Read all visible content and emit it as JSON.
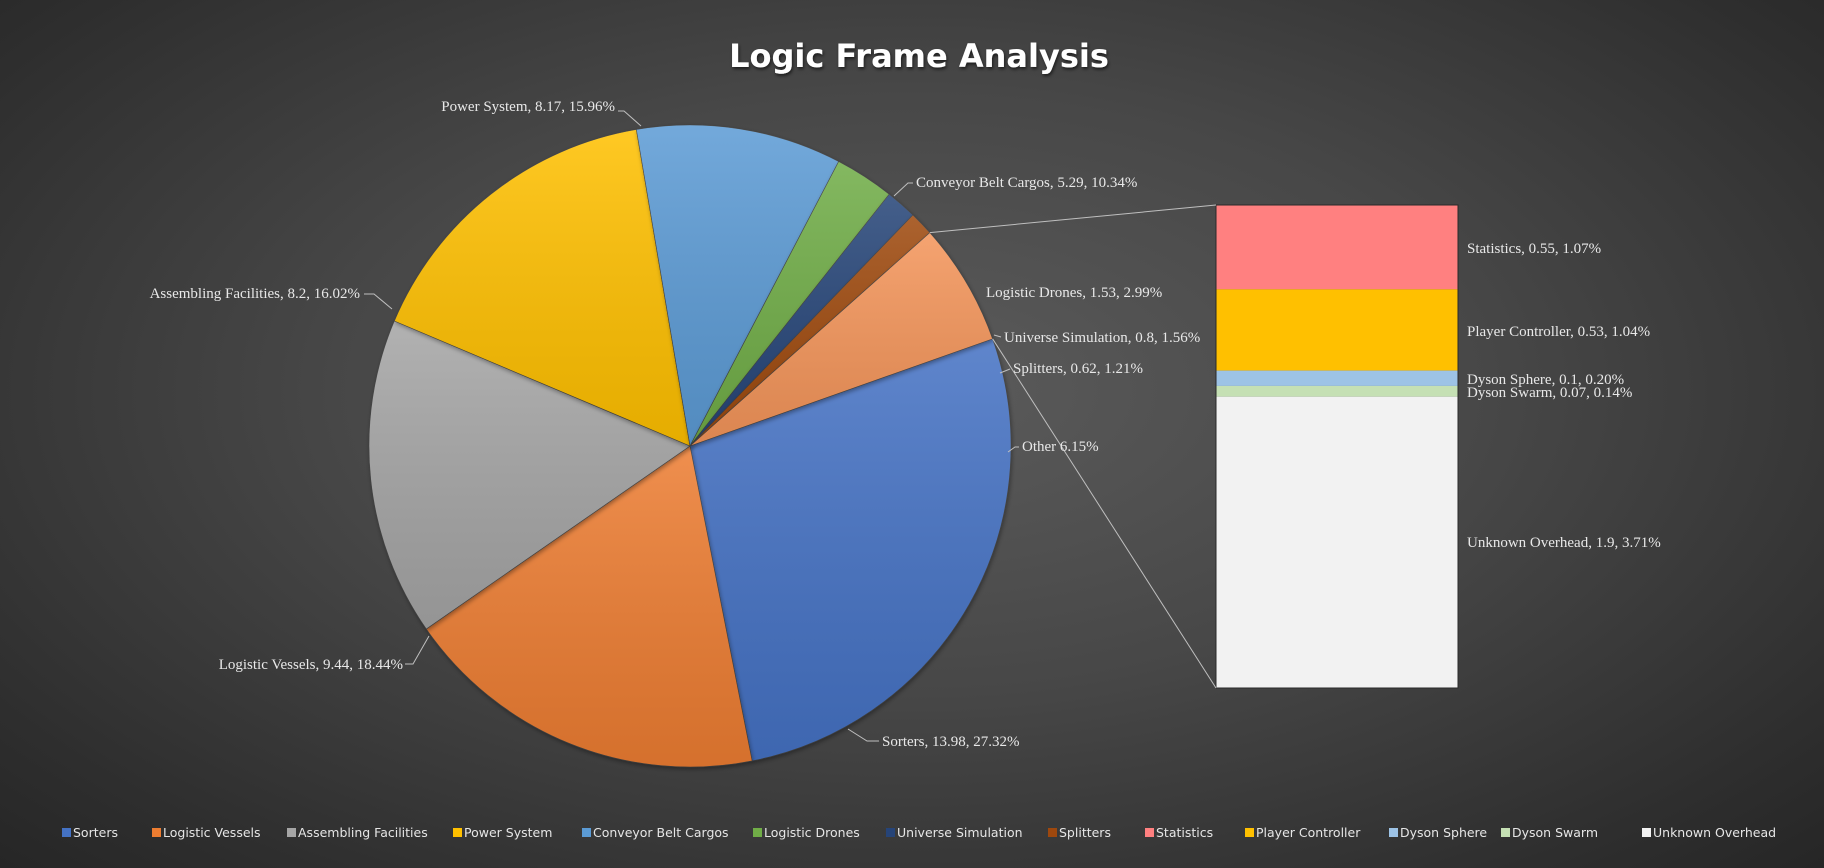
{
  "chart_data": {
    "type": "pie",
    "subtype": "bar-of-pie",
    "title": "Logic Frame Analysis",
    "slices": [
      {
        "name": "Sorters",
        "value": 13.98,
        "label": "Sorters, 13.98, 27.32%",
        "color": "#4472c4"
      },
      {
        "name": "Logistic Vessels",
        "value": 9.44,
        "label": "Logistic Vessels, 9.44, 18.44%",
        "color": "#ed7d31"
      },
      {
        "name": "Assembling Facilities",
        "value": 8.2,
        "label": "Assembling Facilities, 8.2, 16.02%",
        "color": "#a5a5a5"
      },
      {
        "name": "Power System",
        "value": 8.17,
        "label": "Power System, 8.17, 15.96%",
        "color": "#ffc000"
      },
      {
        "name": "Conveyor Belt Cargos",
        "value": 5.29,
        "label": "Conveyor Belt Cargos, 5.29, 10.34%",
        "color": "#5b9bd5"
      },
      {
        "name": "Logistic Drones",
        "value": 1.53,
        "label": "Logistic Drones, 1.53, 2.99%",
        "color": "#70ad47"
      },
      {
        "name": "Universe Simulation",
        "value": 0.8,
        "label": "Universe Simulation, 0.8, 1.56%",
        "color": "#264478"
      },
      {
        "name": "Splitters",
        "value": 0.62,
        "label": "Splitters, 0.62, 1.21%",
        "color": "#9e480e"
      },
      {
        "name": "Other",
        "value": 3.15,
        "label": "Other 6.15%",
        "color": "#f4955a"
      }
    ],
    "secondary": [
      {
        "name": "Statistics",
        "value": 0.55,
        "label": "Statistics, 0.55, 1.07%",
        "color": "#ff8080"
      },
      {
        "name": "Player Controller",
        "value": 0.53,
        "label": "Player Controller, 0.53, 1.04%",
        "color": "#ffc000"
      },
      {
        "name": "Dyson Sphere",
        "value": 0.1,
        "label": "Dyson Sphere, 0.1, 0.20%",
        "color": "#9dc3e6"
      },
      {
        "name": "Dyson Swarm",
        "value": 0.07,
        "label": "Dyson Swarm, 0.07, 0.14%",
        "color": "#c5e0b4"
      },
      {
        "name": "Unknown Overhead",
        "value": 1.9,
        "label": "Unknown Overhead, 1.9, 3.71%",
        "color": "#f2f2f2"
      }
    ],
    "legend": [
      {
        "name": "Sorters",
        "color": "#4472c4"
      },
      {
        "name": "Logistic Vessels",
        "color": "#ed7d31"
      },
      {
        "name": "Assembling Facilities",
        "color": "#a5a5a5"
      },
      {
        "name": "Power System",
        "color": "#ffc000"
      },
      {
        "name": "Conveyor Belt Cargos",
        "color": "#5b9bd5"
      },
      {
        "name": "Logistic Drones",
        "color": "#70ad47"
      },
      {
        "name": "Universe Simulation",
        "color": "#264478"
      },
      {
        "name": "Splitters",
        "color": "#9e480e"
      },
      {
        "name": "Statistics",
        "color": "#ff8080"
      },
      {
        "name": "Player Controller",
        "color": "#ffc000"
      },
      {
        "name": "Dyson Sphere",
        "color": "#9dc3e6"
      },
      {
        "name": "Dyson Swarm",
        "color": "#c5e0b4"
      },
      {
        "name": "Unknown Overhead",
        "color": "#f2f2f2"
      }
    ],
    "legend_position": "bottom"
  }
}
